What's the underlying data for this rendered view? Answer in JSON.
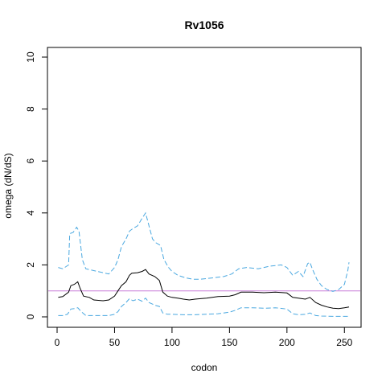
{
  "chart_data": {
    "type": "line",
    "title": "Rv1056",
    "xlabel": "codon",
    "ylabel": "omega (dN/dS)",
    "xlim": [
      0,
      256
    ],
    "ylim": [
      0,
      10
    ],
    "x_ticks": [
      "0",
      "50",
      "100",
      "150",
      "200",
      "250"
    ],
    "y_ticks": [
      "0",
      "2",
      "4",
      "6",
      "8",
      "10"
    ],
    "grid": false,
    "reference_line": {
      "y": 1,
      "color": "#c77cd8"
    },
    "series": [
      {
        "style": "solid",
        "color": "#000000",
        "points": [
          [
            1,
            0.75
          ],
          [
            5,
            0.78
          ],
          [
            10,
            0.95
          ],
          [
            12,
            1.2
          ],
          [
            15,
            1.25
          ],
          [
            18,
            1.35
          ],
          [
            20,
            1.1
          ],
          [
            23,
            0.8
          ],
          [
            28,
            0.75
          ],
          [
            32,
            0.65
          ],
          [
            40,
            0.62
          ],
          [
            45,
            0.65
          ],
          [
            50,
            0.8
          ],
          [
            53,
            1.0
          ],
          [
            56,
            1.2
          ],
          [
            60,
            1.35
          ],
          [
            63,
            1.6
          ],
          [
            65,
            1.68
          ],
          [
            70,
            1.7
          ],
          [
            74,
            1.75
          ],
          [
            77,
            1.82
          ],
          [
            80,
            1.65
          ],
          [
            85,
            1.55
          ],
          [
            89,
            1.4
          ],
          [
            92,
            0.95
          ],
          [
            96,
            0.8
          ],
          [
            100,
            0.75
          ],
          [
            105,
            0.72
          ],
          [
            110,
            0.68
          ],
          [
            115,
            0.65
          ],
          [
            120,
            0.68
          ],
          [
            130,
            0.72
          ],
          [
            140,
            0.78
          ],
          [
            150,
            0.8
          ],
          [
            155,
            0.85
          ],
          [
            160,
            0.95
          ],
          [
            170,
            0.95
          ],
          [
            180,
            0.93
          ],
          [
            190,
            0.95
          ],
          [
            200,
            0.92
          ],
          [
            205,
            0.75
          ],
          [
            210,
            0.72
          ],
          [
            216,
            0.68
          ],
          [
            220,
            0.75
          ],
          [
            225,
            0.55
          ],
          [
            230,
            0.45
          ],
          [
            235,
            0.38
          ],
          [
            240,
            0.33
          ],
          [
            245,
            0.32
          ],
          [
            250,
            0.35
          ],
          [
            254,
            0.38
          ]
        ]
      },
      {
        "style": "dashed",
        "color": "#4aa8e0",
        "points": [
          [
            1,
            1.9
          ],
          [
            5,
            1.85
          ],
          [
            10,
            2.0
          ],
          [
            11,
            3.2
          ],
          [
            14,
            3.25
          ],
          [
            17,
            3.45
          ],
          [
            19,
            3.3
          ],
          [
            22,
            2.2
          ],
          [
            25,
            1.85
          ],
          [
            30,
            1.8
          ],
          [
            40,
            1.7
          ],
          [
            45,
            1.65
          ],
          [
            50,
            1.9
          ],
          [
            53,
            2.2
          ],
          [
            56,
            2.7
          ],
          [
            60,
            3.0
          ],
          [
            63,
            3.3
          ],
          [
            66,
            3.4
          ],
          [
            70,
            3.5
          ],
          [
            74,
            3.8
          ],
          [
            77,
            4.0
          ],
          [
            80,
            3.5
          ],
          [
            83,
            3.0
          ],
          [
            86,
            2.85
          ],
          [
            90,
            2.75
          ],
          [
            93,
            2.2
          ],
          [
            97,
            1.9
          ],
          [
            100,
            1.75
          ],
          [
            105,
            1.6
          ],
          [
            112,
            1.5
          ],
          [
            118,
            1.45
          ],
          [
            125,
            1.45
          ],
          [
            135,
            1.5
          ],
          [
            145,
            1.55
          ],
          [
            152,
            1.65
          ],
          [
            158,
            1.85
          ],
          [
            165,
            1.9
          ],
          [
            175,
            1.85
          ],
          [
            185,
            1.95
          ],
          [
            195,
            2.0
          ],
          [
            200,
            1.9
          ],
          [
            205,
            1.6
          ],
          [
            210,
            1.75
          ],
          [
            214,
            1.55
          ],
          [
            218,
            2.05
          ],
          [
            220,
            2.1
          ],
          [
            222,
            1.85
          ],
          [
            226,
            1.45
          ],
          [
            230,
            1.2
          ],
          [
            235,
            1.05
          ],
          [
            240,
            0.98
          ],
          [
            245,
            1.05
          ],
          [
            250,
            1.25
          ],
          [
            253,
            1.8
          ],
          [
            254,
            2.1
          ]
        ]
      },
      {
        "style": "dashed",
        "color": "#4aa8e0",
        "points": [
          [
            1,
            0.05
          ],
          [
            5,
            0.05
          ],
          [
            9,
            0.1
          ],
          [
            12,
            0.3
          ],
          [
            15,
            0.32
          ],
          [
            18,
            0.35
          ],
          [
            21,
            0.2
          ],
          [
            25,
            0.05
          ],
          [
            30,
            0.05
          ],
          [
            40,
            0.05
          ],
          [
            45,
            0.05
          ],
          [
            50,
            0.1
          ],
          [
            53,
            0.2
          ],
          [
            56,
            0.4
          ],
          [
            60,
            0.55
          ],
          [
            63,
            0.7
          ],
          [
            66,
            0.62
          ],
          [
            70,
            0.68
          ],
          [
            74,
            0.6
          ],
          [
            77,
            0.72
          ],
          [
            80,
            0.55
          ],
          [
            85,
            0.45
          ],
          [
            89,
            0.4
          ],
          [
            92,
            0.15
          ],
          [
            96,
            0.1
          ],
          [
            100,
            0.1
          ],
          [
            110,
            0.08
          ],
          [
            120,
            0.08
          ],
          [
            130,
            0.1
          ],
          [
            140,
            0.12
          ],
          [
            150,
            0.18
          ],
          [
            155,
            0.25
          ],
          [
            160,
            0.35
          ],
          [
            170,
            0.35
          ],
          [
            180,
            0.33
          ],
          [
            190,
            0.35
          ],
          [
            200,
            0.3
          ],
          [
            205,
            0.12
          ],
          [
            210,
            0.08
          ],
          [
            216,
            0.1
          ],
          [
            220,
            0.15
          ],
          [
            225,
            0.05
          ],
          [
            230,
            0.03
          ],
          [
            240,
            0.02
          ],
          [
            250,
            0.02
          ],
          [
            254,
            0.02
          ]
        ]
      }
    ]
  }
}
